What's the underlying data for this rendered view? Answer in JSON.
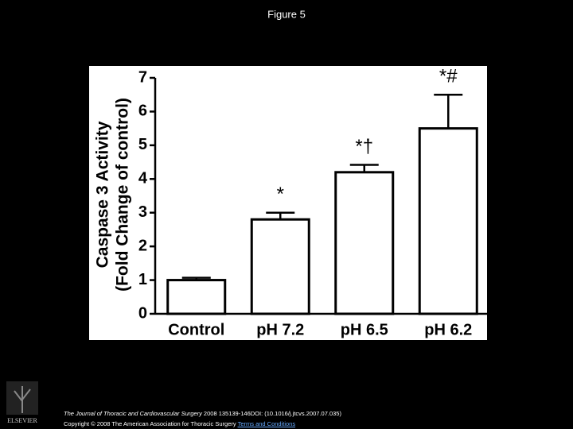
{
  "figure_title": "Figure 5",
  "chart_data": {
    "type": "bar",
    "y_label_lines": [
      "Caspase 3 Activity",
      "(Fold Change of control)"
    ],
    "categories": [
      "Control",
      "pH 7.2",
      "pH 6.5",
      "pH 6.2"
    ],
    "values": [
      1.0,
      2.8,
      4.2,
      5.5
    ],
    "errors": [
      0.07,
      0.2,
      0.22,
      1.0
    ],
    "annotations": [
      null,
      "*",
      "*†",
      "*#"
    ],
    "color": "#ffffff",
    "ylim": [
      0,
      7
    ],
    "yticks": [
      0,
      1,
      2,
      3,
      4,
      5,
      6,
      7
    ]
  },
  "publisher": "ELSEVIER",
  "footer": {
    "journal": "The Journal of Thoracic and Cardiovascular Surgery",
    "citation": " 2008 135139-146DOI: (10.1016/j.jtcvs.2007.07.035)",
    "copyright": "Copyright © 2008 The American Association for Thoracic Surgery",
    "link": "Terms and Conditions"
  }
}
